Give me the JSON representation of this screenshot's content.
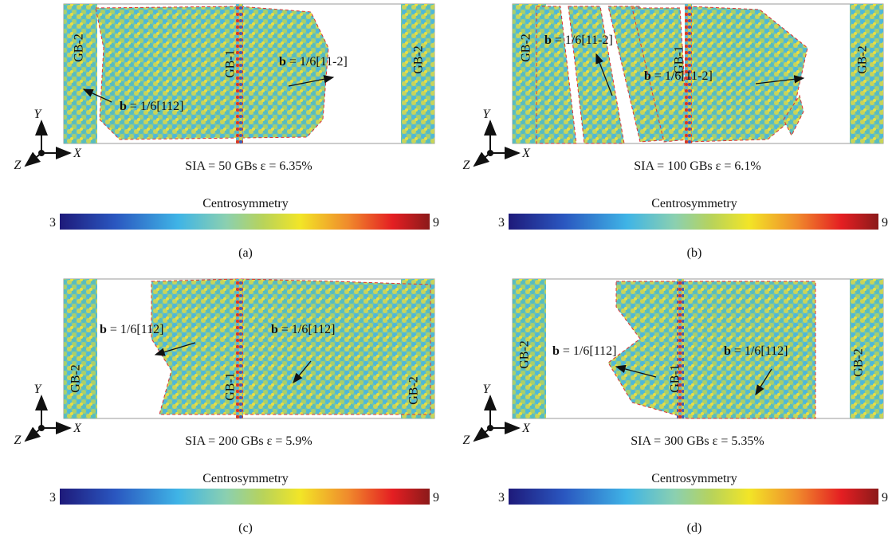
{
  "panels": [
    {
      "label": "(a)",
      "caption": "SIA = 50 GBs ε = 6.35%",
      "axes": [
        "Y",
        "X",
        "Z"
      ],
      "gb_labels": [
        "GB-2",
        "GB-1",
        "GB-2"
      ],
      "annotations": [
        {
          "symbol": "b",
          "text": "= 1/6[112]"
        },
        {
          "symbol": "b",
          "text": "= 1/6[11-2]"
        }
      ],
      "colorbar": {
        "title": "Centrosymmetry",
        "min": "3",
        "max": "9"
      }
    },
    {
      "label": "(b)",
      "caption": "SIA = 100 GBs ε = 6.1%",
      "axes": [
        "Y",
        "X",
        "Z"
      ],
      "gb_labels": [
        "GB-2",
        "GB-1",
        "GB-2"
      ],
      "annotations": [
        {
          "symbol": "b",
          "text": "= 1/6[11-2]"
        },
        {
          "symbol": "b",
          "text": "= 1/6[11-2]"
        }
      ],
      "colorbar": {
        "title": "Centrosymmetry",
        "min": "3",
        "max": "9"
      }
    },
    {
      "label": "(c)",
      "caption": "SIA = 200 GBs ε = 5.9%",
      "axes": [
        "Y",
        "X",
        "Z"
      ],
      "gb_labels": [
        "GB-2",
        "GB-1",
        "GB-2"
      ],
      "annotations": [
        {
          "symbol": "b",
          "text": "= 1/6[112]"
        },
        {
          "symbol": "b",
          "text": "= 1/6[112]"
        }
      ],
      "colorbar": {
        "title": "Centrosymmetry",
        "min": "3",
        "max": "9"
      }
    },
    {
      "label": "(d)",
      "caption": "SIA = 300 GBs ε = 5.35%",
      "axes": [
        "Y",
        "X",
        "Z"
      ],
      "gb_labels": [
        "GB-2",
        "GB-1",
        "GB-2"
      ],
      "annotations": [
        {
          "symbol": "b",
          "text": "= 1/6[112]"
        },
        {
          "symbol": "b",
          "text": "= 1/6[112]"
        }
      ],
      "colorbar": {
        "title": "Centrosymmetry",
        "min": "3",
        "max": "9"
      }
    }
  ]
}
